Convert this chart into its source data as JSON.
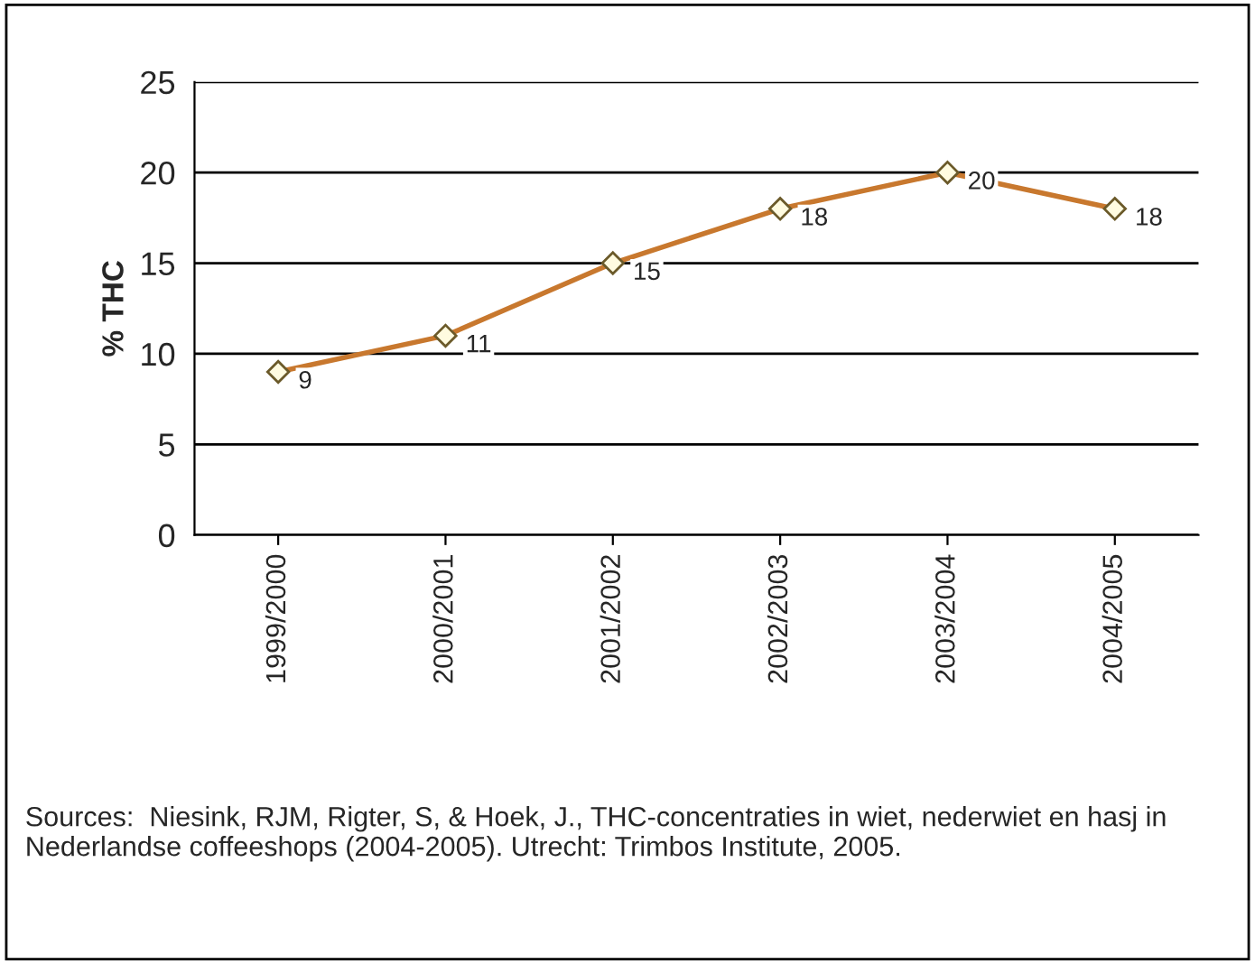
{
  "chart_data": {
    "type": "line",
    "ylabel": "% THC",
    "categories": [
      "1999/2000",
      "2000/2001",
      "2001/2002",
      "2002/2003",
      "2003/2004",
      "2004/2005"
    ],
    "series": [
      {
        "color": "#c8782e",
        "values": [
          9,
          11,
          15,
          18,
          20,
          18
        ]
      }
    ],
    "ylim": [
      0,
      25
    ],
    "yticks": [
      0,
      5,
      10,
      15,
      20,
      25
    ],
    "grid": "y",
    "marker": "diamond",
    "line_style": "solid",
    "data_labels": true,
    "annotations": [
      "Sources:  Niesink, RJM, Rigter, S, & Hoek, J., THC-concentraties in wiet, nederwiet en hasj in Nederlandse coffeeshops (2004-2005). Utrecht: Trimbos Institute, 2005."
    ]
  }
}
